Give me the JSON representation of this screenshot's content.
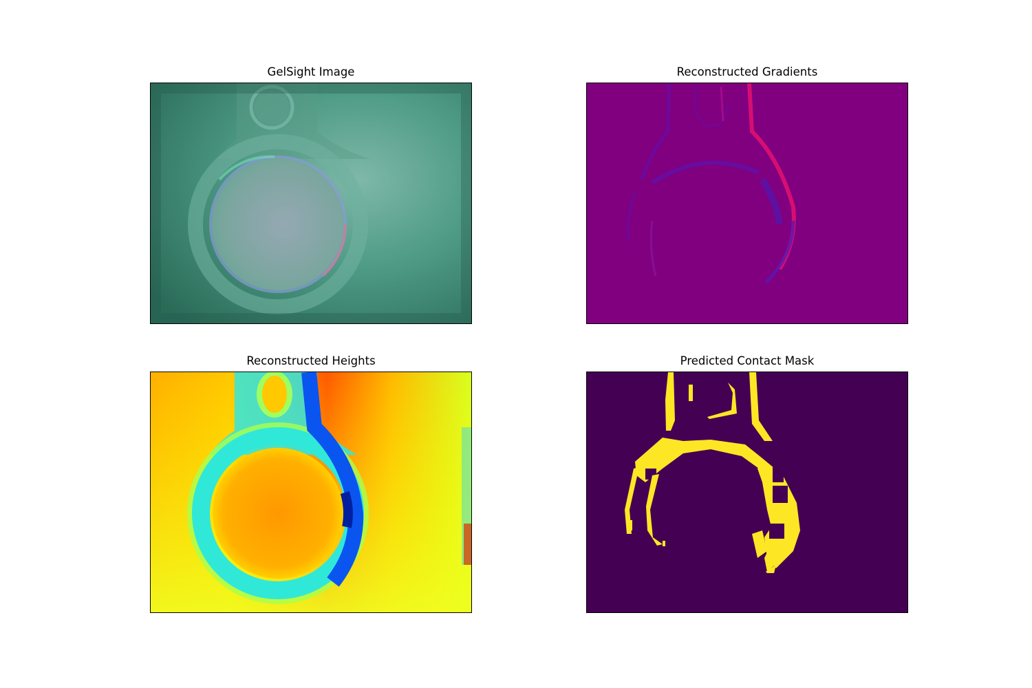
{
  "figure": {
    "panels": [
      {
        "title": "GelSight Image"
      },
      {
        "title": "Reconstructed Gradients"
      },
      {
        "title": "Reconstructed Heights"
      },
      {
        "title": "Predicted Contact Mask"
      }
    ]
  },
  "colors": {
    "gelsight_background": "#2e7a66",
    "gradient_background": "#800080",
    "gradient_highlight": "#e0106a",
    "gradient_shadow": "#5a10a0",
    "height_warm": "#ff8a00",
    "height_cool": "#0040e0",
    "mask_background": "#440154",
    "mask_foreground": "#fde725"
  }
}
